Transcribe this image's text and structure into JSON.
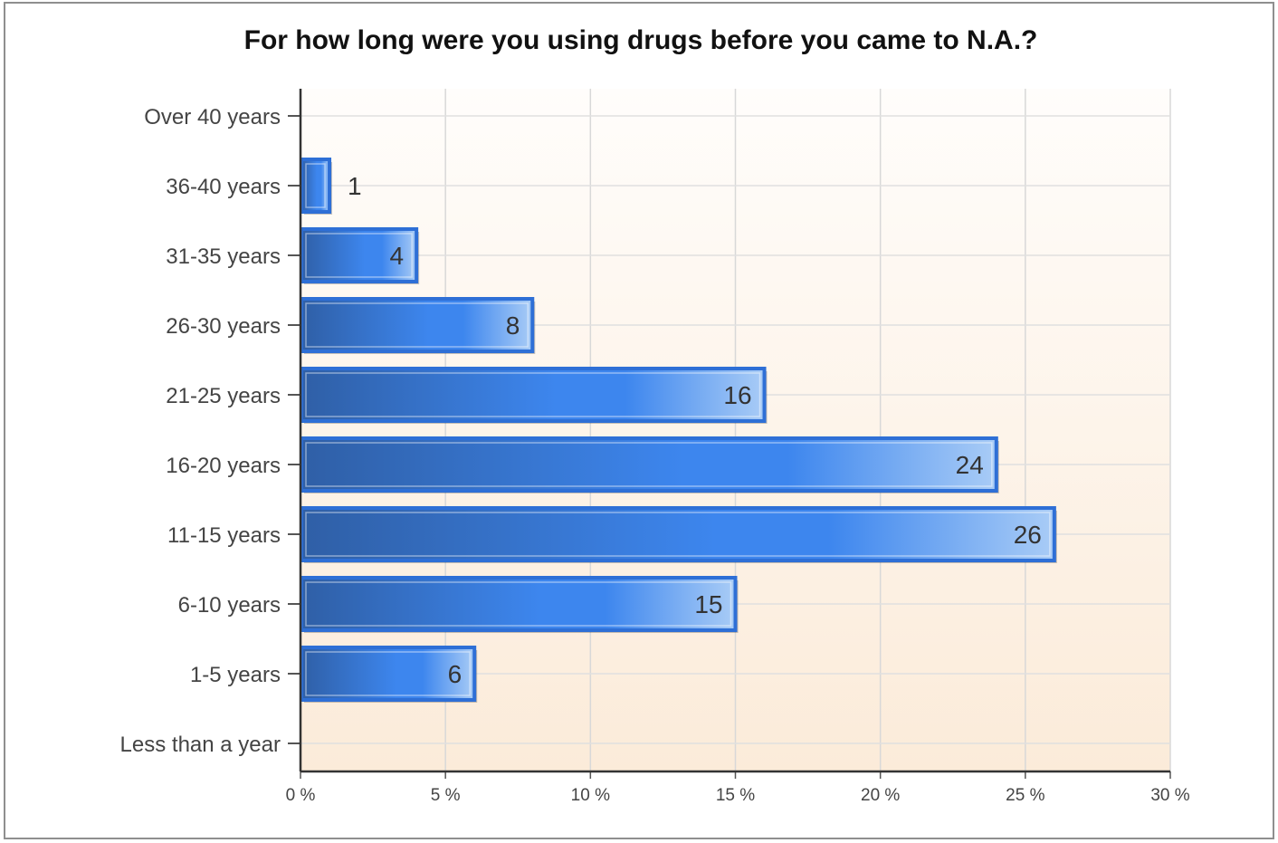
{
  "chart_data": {
    "type": "bar",
    "orientation": "horizontal",
    "title": "For how long were you using drugs before you came to N.A.?",
    "xlabel": "",
    "ylabel": "",
    "categories": [
      "Over 40 years",
      "36-40 years",
      "31-35 years",
      "26-30 years",
      "21-25 years",
      "16-20 years",
      "11-15 years",
      "6-10 years",
      "1-5 years",
      "Less than a year"
    ],
    "values": [
      0,
      1,
      4,
      8,
      16,
      24,
      26,
      15,
      6,
      0
    ],
    "value_labels": [
      "",
      "1",
      "4",
      "8",
      "16",
      "24",
      "26",
      "15",
      "6",
      ""
    ],
    "xlim": [
      0,
      30
    ],
    "x_ticks": [
      0,
      5,
      10,
      15,
      20,
      25,
      30
    ],
    "x_tick_labels": [
      "0 %",
      "5 %",
      "10 %",
      "15 %",
      "20 %",
      "25 %",
      "30 %"
    ],
    "grid": true,
    "legend": "none",
    "colors": {
      "bar_dark": "#2f5fa6",
      "bar_mid": "#3d86ee",
      "bar_light": "#a9ccf6",
      "bar_border": "#2e6fd6",
      "plot_bg_top": "#fffdfb",
      "plot_bg_bottom": "#fbebd9"
    }
  }
}
